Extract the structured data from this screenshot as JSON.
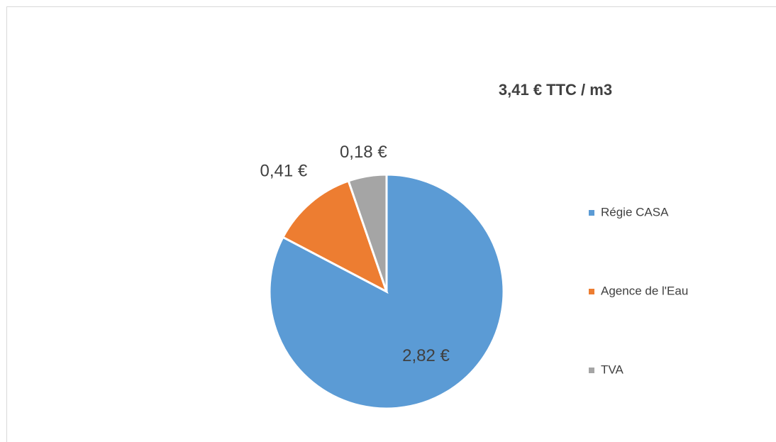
{
  "chart_data": {
    "type": "pie",
    "title": "3,41 € TTC / m3",
    "categories": [
      "Régie CASA",
      "Agence de l'Eau",
      "TVA"
    ],
    "values": [
      2.82,
      0.41,
      0.18
    ],
    "value_labels": [
      "2,82 €",
      "0,41 €",
      "0,18 €"
    ],
    "colors": [
      "#5b9bd5",
      "#ed7d31",
      "#a5a5a5"
    ],
    "legend": "right"
  }
}
